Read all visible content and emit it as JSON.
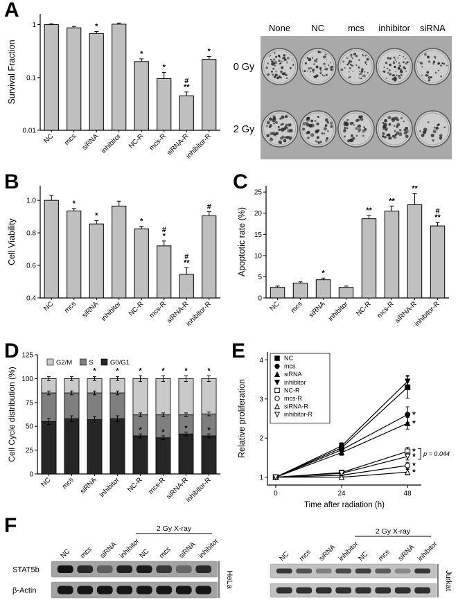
{
  "panels": {
    "a": "A",
    "b": "B",
    "c": "C",
    "d": "D",
    "e": "E",
    "f": "F"
  },
  "colors": {
    "bar_fill": "#bfbfbf",
    "g0g1": "#262626",
    "s_phase": "#7f7f7f",
    "g2m": "#c9c9c9"
  },
  "chart_data": [
    {
      "id": "A",
      "type": "bar",
      "yscale": "log",
      "ylabel": "Survival Fraction",
      "ylim": [
        0.01,
        1.6
      ],
      "yticks": [
        0.01,
        0.1,
        1
      ],
      "ytick_labels": [
        "0.01",
        "0.1",
        "1"
      ],
      "categories": [
        "NC",
        "mcs",
        "siRNA",
        "inhibitor",
        "NC-R",
        "mcs-R",
        "siRNA-R",
        "inhibitor-R"
      ],
      "values": [
        1.0,
        0.87,
        0.68,
        1.02,
        0.2,
        0.095,
        0.045,
        0.22
      ],
      "errors": [
        0.04,
        0.05,
        0.06,
        0.05,
        0.025,
        0.03,
        0.008,
        0.03
      ],
      "annotations": [
        null,
        null,
        "*",
        null,
        "*",
        "*",
        [
          "#",
          "**"
        ],
        "*"
      ]
    },
    {
      "id": "B",
      "type": "bar",
      "yscale": "linear",
      "ylabel": "Cell Viability",
      "ylim": [
        0.4,
        1.09
      ],
      "yticks": [
        0.4,
        0.6,
        0.8,
        1.0
      ],
      "ytick_labels": [
        "0.4",
        "0.6",
        "0.8",
        "1.0"
      ],
      "categories": [
        "NC",
        "mcs",
        "siRNA",
        "inhibitor",
        "NC-R",
        "mcs-R",
        "siRNA-R",
        "inhibitor-R"
      ],
      "values": [
        1.0,
        0.935,
        0.855,
        0.965,
        0.825,
        0.72,
        0.545,
        0.905
      ],
      "errors": [
        0.03,
        0.015,
        0.02,
        0.03,
        0.015,
        0.03,
        0.04,
        0.025
      ],
      "annotations": [
        null,
        "*",
        "*",
        null,
        "*",
        [
          "#",
          "*"
        ],
        [
          "#",
          "**"
        ],
        "#"
      ]
    },
    {
      "id": "C",
      "type": "bar",
      "yscale": "linear",
      "ylabel": "Apoptotic rate (%)",
      "ylim": [
        0,
        26.5
      ],
      "yticks": [
        0,
        5,
        10,
        15,
        20,
        25
      ],
      "ytick_labels": [
        "0",
        "5",
        "10",
        "15",
        "20",
        "25"
      ],
      "categories": [
        "NC",
        "mcs",
        "siRNA",
        "inhibitor",
        "NC-R",
        "mcs-R",
        "siRNA-R",
        "inhibitor-R"
      ],
      "values": [
        2.5,
        3.5,
        4.3,
        2.5,
        18.7,
        20.5,
        22.0,
        17.0
      ],
      "errors": [
        0.3,
        0.3,
        0.4,
        0.3,
        0.8,
        1.2,
        2.6,
        0.8
      ],
      "annotations": [
        null,
        null,
        "*",
        null,
        "**",
        "**",
        "**",
        [
          "#",
          "**"
        ]
      ]
    },
    {
      "id": "D",
      "type": "stacked-bar",
      "ylabel": "Cell Cycle distribution (%)",
      "ylim": [
        0,
        125
      ],
      "yticks": [
        0,
        25,
        50,
        75,
        100,
        125
      ],
      "ytick_labels": [
        "0",
        "25",
        "50",
        "75",
        "100",
        "125"
      ],
      "categories": [
        "NC",
        "mcs",
        "siRNA",
        "Inhibitor",
        "NC-R",
        "mcs-R",
        "siRNA-R",
        "inhibitor-R"
      ],
      "series": [
        {
          "name": "G0/G1",
          "color": "#262626",
          "values": [
            55,
            58,
            57,
            58,
            40,
            38,
            42,
            40
          ],
          "errors": [
            3,
            3,
            3,
            3,
            2,
            2,
            2,
            2
          ]
        },
        {
          "name": "S",
          "color": "#7f7f7f",
          "values": [
            30,
            27,
            28,
            27,
            22,
            24,
            20,
            23
          ],
          "errors": [
            2,
            2,
            2,
            2,
            2,
            2,
            2,
            2
          ]
        },
        {
          "name": "G2/M",
          "color": "#c9c9c9",
          "values": [
            15,
            15,
            15,
            15,
            38,
            38,
            38,
            37
          ],
          "errors": [
            2,
            2,
            2,
            2,
            3,
            3,
            3,
            3
          ]
        }
      ],
      "legend_order": [
        "G2/M",
        "S",
        "G0/G1"
      ],
      "annotations_top": [
        null,
        null,
        "*",
        "*",
        "*",
        "*",
        "*",
        "*"
      ],
      "annotations_seg": [
        {
          "index": 4,
          "text": "*"
        },
        {
          "index": 5,
          "text": "*"
        },
        {
          "index": 6,
          "text": "*"
        },
        {
          "index": 7,
          "text": "*"
        }
      ]
    },
    {
      "id": "E",
      "type": "line",
      "xlabel": "Time after radiation (h)",
      "ylabel": "Relative proliferation",
      "x": [
        0,
        24,
        48
      ],
      "xlim": [
        -3,
        53
      ],
      "ylim": [
        0.8,
        4.2
      ],
      "xticks": [
        0,
        24,
        48
      ],
      "yticks": [
        1,
        2,
        3,
        4
      ],
      "series": [
        {
          "name": "NC",
          "marker": "square",
          "filled": true,
          "values": [
            1,
            1.75,
            3.3
          ],
          "errors": [
            0,
            0.08,
            0.28
          ]
        },
        {
          "name": "mcs",
          "marker": "circle",
          "filled": true,
          "values": [
            1,
            1.7,
            2.6
          ],
          "errors": [
            0,
            0.07,
            0.2
          ]
        },
        {
          "name": "siRNA",
          "marker": "triangle-up",
          "filled": true,
          "values": [
            1,
            1.63,
            2.38
          ],
          "errors": [
            0,
            0.07,
            0.15
          ]
        },
        {
          "name": "inhibitor",
          "marker": "triangle-down",
          "filled": true,
          "values": [
            1,
            1.8,
            3.45
          ],
          "errors": [
            0,
            0.08,
            0.15
          ]
        },
        {
          "name": "NC-R",
          "marker": "square",
          "filled": false,
          "values": [
            1,
            1.12,
            1.66
          ],
          "errors": [
            0,
            0.05,
            0.1
          ]
        },
        {
          "name": "mcs-R",
          "marker": "circle",
          "filled": false,
          "values": [
            1,
            1.05,
            1.3
          ],
          "errors": [
            0,
            0.05,
            0.08
          ]
        },
        {
          "name": "siRNA-R",
          "marker": "triangle-up",
          "filled": false,
          "values": [
            1,
            1.0,
            1.13
          ],
          "errors": [
            0,
            0.04,
            0.07
          ]
        },
        {
          "name": "inhibitor-R",
          "marker": "triangle-down",
          "filled": false,
          "values": [
            1,
            1.1,
            1.53
          ],
          "errors": [
            0,
            0.05,
            0.09
          ]
        }
      ],
      "annotations": [
        {
          "x": 48,
          "y": 2.6,
          "text": "*"
        },
        {
          "x": 48,
          "y": 2.38,
          "text": "*"
        },
        {
          "x": 48,
          "y": 1.66,
          "text": "*"
        },
        {
          "x": 48,
          "y": 1.53,
          "text": "*"
        },
        {
          "x": 48,
          "y": 1.3,
          "text": "*"
        },
        {
          "x": 48,
          "y": 1.13,
          "text": "*"
        }
      ],
      "bracket": {
        "x": 48,
        "y1": 1.66,
        "y2": 1.53,
        "label": "p = 0.044"
      },
      "legend_position": "top-left"
    }
  ],
  "colony_assay": {
    "col_labels": [
      "None",
      "NC",
      "mcs",
      "inhibitor",
      "siRNA"
    ],
    "row_labels": [
      "0 Gy",
      "2 Gy"
    ],
    "colony_counts": [
      [
        55,
        50,
        48,
        52,
        30
      ],
      [
        45,
        40,
        36,
        42,
        15
      ]
    ]
  },
  "western_blots": {
    "treatment_label": "2 Gy X-ray",
    "groups": [
      {
        "id": "hela",
        "cell_line": "HeLa",
        "lanes": [
          "NC",
          "mcs",
          "siRNA",
          "inhibitor",
          "NC",
          "mcs",
          "siRNA",
          "inhibitor"
        ],
        "rows": [
          {
            "label": "STAT5b",
            "intensities": [
              0.95,
              0.8,
              0.45,
              0.85,
              0.9,
              0.7,
              0.4,
              0.8
            ]
          },
          {
            "label": "β-Actin",
            "intensities": [
              0.92,
              0.92,
              0.92,
              0.92,
              0.92,
              0.92,
              0.92,
              0.92
            ]
          }
        ]
      },
      {
        "id": "jurkat",
        "cell_line": "Jurkat",
        "lanes": [
          "NC",
          "mcs",
          "siRNA",
          "inhibitor",
          "NC",
          "mcs",
          "siRNA",
          "inhibitor"
        ],
        "rows": [
          {
            "label": "",
            "intensities": [
              0.75,
              0.6,
              0.35,
              0.65,
              0.7,
              0.55,
              0.3,
              0.75
            ]
          },
          {
            "label": "",
            "intensities": [
              0.8,
              0.8,
              0.8,
              0.8,
              0.8,
              0.8,
              0.8,
              0.8
            ]
          }
        ]
      }
    ]
  }
}
